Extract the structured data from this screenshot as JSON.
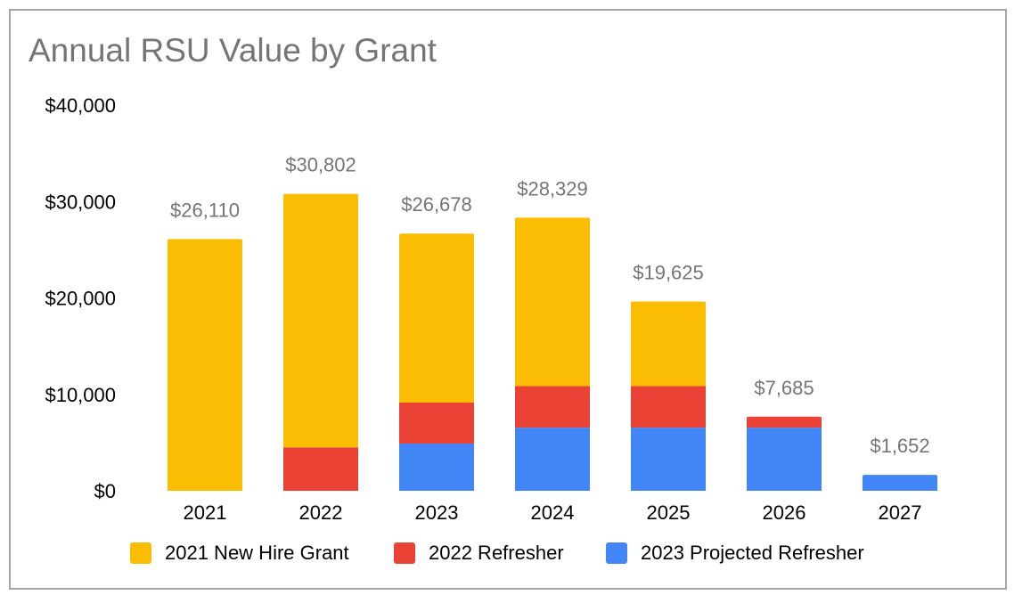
{
  "title": "Annual RSU Value by Grant",
  "chart_data": {
    "type": "bar",
    "stacked": true,
    "title": "Annual RSU Value by Grant",
    "xlabel": "",
    "ylabel": "",
    "categories": [
      "2021",
      "2022",
      "2023",
      "2024",
      "2025",
      "2026",
      "2027"
    ],
    "series": [
      {
        "name": "2023 Projected Refresher",
        "color": "#4285f4",
        "values": [
          0,
          0,
          4900,
          6550,
          6550,
          6550,
          1652
        ]
      },
      {
        "name": "2022 Refresher",
        "color": "#ea4335",
        "values": [
          0,
          4500,
          4250,
          4300,
          4300,
          1135,
          0
        ]
      },
      {
        "name": "2021 New Hire Grant",
        "color": "#fbbc04",
        "values": [
          26110,
          26302,
          17528,
          17479,
          8775,
          0,
          0
        ]
      }
    ],
    "totals": [
      26110,
      30802,
      26678,
      28329,
      19625,
      7685,
      1652
    ],
    "total_labels": [
      "$26,110",
      "$30,802",
      "$26,678",
      "$28,329",
      "$19,625",
      "$7,685",
      "$1,652"
    ],
    "ylim": [
      0,
      40000
    ],
    "yticks": [
      0,
      10000,
      20000,
      30000,
      40000
    ],
    "ytick_labels": [
      "$0",
      "$10,000",
      "$20,000",
      "$30,000",
      "$40,000"
    ],
    "legend_order": [
      "2021 New Hire Grant",
      "2022 Refresher",
      "2023 Projected Refresher"
    ],
    "legend_position": "bottom",
    "grid": false
  }
}
